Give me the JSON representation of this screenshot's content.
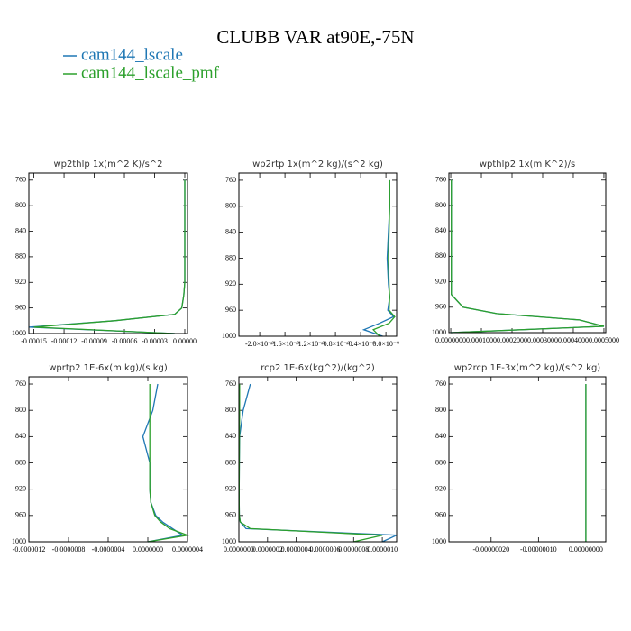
{
  "title": "CLUBB VAR at90E,-75N",
  "chart_data": [
    {
      "type": "line",
      "title": "wp2thlp   1x(m^2 K)/s^2",
      "y": [
        760,
        800,
        840,
        880,
        920,
        940,
        960,
        970,
        980,
        990,
        1000
      ],
      "series": [
        {
          "name": "cam144_lscale",
          "color": "#1f77b4",
          "values": [
            0,
            0,
            0,
            0,
            0,
            -1e-06,
            -3e-06,
            -1e-05,
            -7e-05,
            -0.000155,
            -1e-05
          ]
        },
        {
          "name": "cam144_lscale_pmf",
          "color": "#2ca02c",
          "values": [
            0,
            0,
            0,
            0,
            0,
            -1e-06,
            -3e-06,
            -1e-05,
            -7e-05,
            -0.00015,
            -1e-05
          ]
        }
      ],
      "xlim": [
        -0.000155,
        2.7e-06
      ],
      "xticks": [
        -0.00015,
        -0.00012,
        -9e-05,
        -6e-05,
        -3e-05,
        {
          "value": 0,
          "label": "0.00000"
        }
      ],
      "ylim": [
        1000,
        749
      ],
      "yticks": [
        760,
        800,
        840,
        880,
        920,
        960,
        1000
      ]
    },
    {
      "type": "line",
      "title": "wp2rtp   1x(m^2 kg)/(s^2 kg)",
      "y": [
        760,
        800,
        840,
        880,
        920,
        940,
        960,
        970,
        980,
        990,
        1000
      ],
      "series": [
        {
          "name": "cam144_lscale",
          "color": "#1f77b4",
          "values": [
            6e-11,
            6e-11,
            4e-11,
            2e-11,
            4e-11,
            6e-11,
            3e-11,
            1.2e-10,
            -1e-10,
            -3.5e-10,
            -5e-11
          ]
        },
        {
          "name": "cam144_lscale_pmf",
          "color": "#2ca02c",
          "values": [
            6e-11,
            6e-11,
            5e-11,
            4e-11,
            5e-11,
            6e-11,
            5e-11,
            1.4e-10,
            5e-11,
            -2e-10,
            -1e-10
          ]
        }
      ],
      "xlim": [
        -2.33e-09,
        1.7e-10
      ],
      "xticks": [
        {
          "value": -2e-09,
          "label": "-2.0×10⁻⁹"
        },
        {
          "value": -1.6e-09,
          "label": "-1.6×10⁻⁹"
        },
        {
          "value": -1.2e-09,
          "label": "-1.2×10⁻⁹"
        },
        {
          "value": -8e-10,
          "label": "-0.8×10⁻⁹"
        },
        {
          "value": -4e-10,
          "label": "-0.4×10⁻⁹"
        },
        {
          "value": 0,
          "label": "0.0×10⁻⁹"
        }
      ],
      "ylim": [
        1000,
        749
      ],
      "yticks": [
        760,
        800,
        840,
        880,
        920,
        960,
        1000
      ]
    },
    {
      "type": "line",
      "title": "wpthlp2   1x(m K^2)/s",
      "y": [
        760,
        800,
        840,
        880,
        920,
        940,
        960,
        970,
        980,
        990,
        1000
      ],
      "series": [
        {
          "name": "cam144_lscale",
          "color": "#1f77b4",
          "values": [
            2e-06,
            2e-06,
            2e-06,
            2e-06,
            2e-06,
            2e-06,
            4e-05,
            0.00015,
            0.00042,
            0.0005,
            0
          ]
        },
        {
          "name": "cam144_lscale_pmf",
          "color": "#2ca02c",
          "values": [
            2e-06,
            2e-06,
            2e-06,
            2e-06,
            2e-06,
            2e-06,
            4e-05,
            0.00015,
            0.00042,
            0.0005,
            0
          ]
        }
      ],
      "xlim": [
        -6e-06,
        0.000506
      ],
      "xticks": [
        {
          "value": 0,
          "label": "0.0000000"
        },
        {
          "value": 0.0001,
          "label": "0.0001000"
        },
        {
          "value": 0.0002,
          "label": "0.0002000"
        },
        {
          "value": 0.0003,
          "label": "0.0003000"
        },
        {
          "value": 0.0004,
          "label": "0.0004000"
        },
        {
          "value": 0.0005,
          "label": "0.0005000"
        }
      ],
      "ylim": [
        1000,
        749
      ],
      "yticks": [
        760,
        800,
        840,
        880,
        920,
        960,
        1000
      ]
    },
    {
      "type": "line",
      "title": "wprtp2   1E-6x(m kg)/(s kg)",
      "y": [
        760,
        800,
        840,
        880,
        920,
        940,
        960,
        970,
        980,
        990,
        1000
      ],
      "series": [
        {
          "name": "cam144_lscale",
          "color": "#1f77b4",
          "values": [
            1e-07,
            5e-08,
            -5e-08,
            2e-08,
            2e-08,
            3e-08,
            8e-08,
            1.5e-07,
            2.5e-07,
            3.5e-07,
            0
          ]
        },
        {
          "name": "cam144_lscale_pmf",
          "color": "#2ca02c",
          "values": [
            2e-08,
            2e-08,
            2e-08,
            2e-08,
            2e-08,
            3e-08,
            7e-08,
            1.3e-07,
            2.2e-07,
            4e-07,
            0
          ]
        }
      ],
      "xlim": [
        -1.2e-06,
        4e-07
      ],
      "xticks": [
        {
          "value": -1.2e-06,
          "label": "-0.0000012"
        },
        {
          "value": -8e-07,
          "label": "-0.0000008"
        },
        {
          "value": -4e-07,
          "label": "-0.0000004"
        },
        {
          "value": 0,
          "label": "0.0000000"
        },
        {
          "value": 4e-07,
          "label": "0.0000004"
        }
      ],
      "ylim": [
        1000,
        749
      ],
      "yticks": [
        760,
        800,
        840,
        880,
        920,
        960,
        1000
      ]
    },
    {
      "type": "line",
      "title": "rcp2   1E-6x(kg^2)/(kg^2)",
      "y": [
        760,
        800,
        840,
        880,
        920,
        940,
        960,
        970,
        980,
        990,
        1000
      ],
      "series": [
        {
          "name": "cam144_lscale",
          "color": "#1f77b4",
          "values": [
            8e-08,
            3e-08,
            5e-09,
            3e-09,
            2e-09,
            2e-09,
            3e-09,
            1e-08,
            5e-08,
            1.1e-06,
            1e-06
          ]
        },
        {
          "name": "cam144_lscale_pmf",
          "color": "#2ca02c",
          "values": [
            5e-09,
            5e-09,
            4e-09,
            3e-09,
            2e-09,
            2e-09,
            3e-09,
            1e-08,
            8e-08,
            1e-06,
            8e-07
          ]
        }
      ],
      "xlim": [
        0,
        1.1e-06
      ],
      "xticks": [
        {
          "value": 0,
          "label": "0.0000000"
        },
        {
          "value": 2e-07,
          "label": "0.0000002"
        },
        {
          "value": 4e-07,
          "label": "0.0000004"
        },
        {
          "value": 6e-07,
          "label": "0.0000006"
        },
        {
          "value": 8e-07,
          "label": "0.0000008"
        },
        {
          "value": 1e-06,
          "label": "0.0000010"
        }
      ],
      "ylim": [
        1000,
        749
      ],
      "yticks": [
        760,
        800,
        840,
        880,
        920,
        960,
        1000
      ]
    },
    {
      "type": "line",
      "title": "wp2rcp   1E-3x(m^2 kg)/(s^2 kg)",
      "y": [
        760,
        800,
        840,
        880,
        920,
        940,
        960,
        970,
        980,
        990,
        1000
      ],
      "series": [
        {
          "name": "cam144_lscale",
          "color": "#1f77b4",
          "values": [
            0,
            0,
            0,
            0,
            0,
            0,
            0,
            0,
            0,
            0,
            0
          ]
        },
        {
          "name": "cam144_lscale_pmf",
          "color": "#2ca02c",
          "values": [
            0,
            0,
            0,
            0,
            0,
            0,
            0,
            0,
            0,
            0,
            0
          ]
        }
      ],
      "xlim": [
        -2.89e-07,
        4.2e-08
      ],
      "xticks": [
        {
          "value": -2e-07,
          "label": "-0.00000020"
        },
        {
          "value": -1e-07,
          "label": "-0.00000010"
        },
        {
          "value": 0,
          "label": "0.00000000"
        }
      ],
      "ylim": [
        1000,
        749
      ],
      "yticks": [
        760,
        800,
        840,
        880,
        920,
        960,
        1000
      ]
    }
  ]
}
